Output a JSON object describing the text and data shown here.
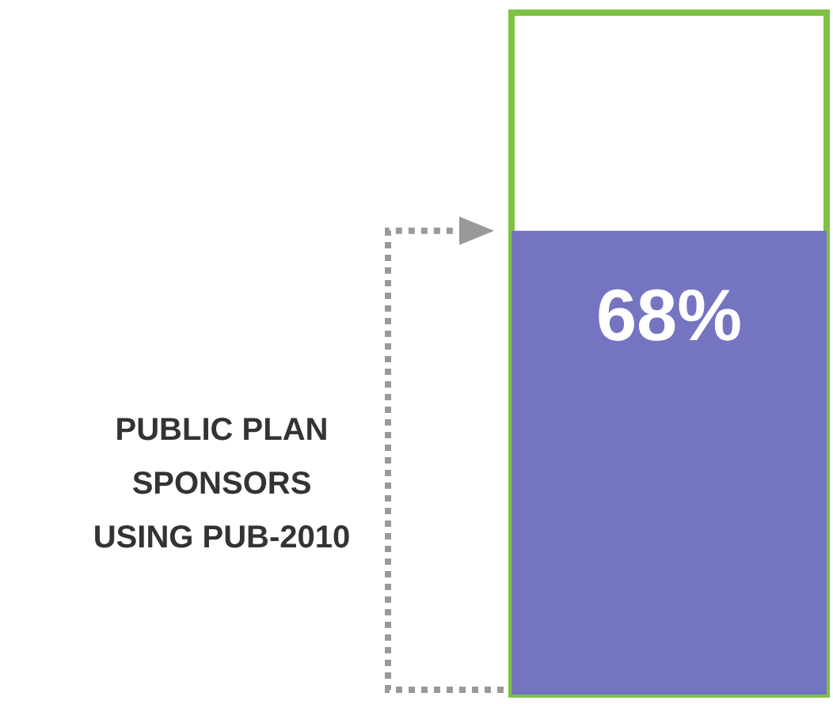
{
  "chart_data": {
    "type": "bar",
    "categories": [
      null
    ],
    "values": [
      68
    ],
    "value_labels": [
      "68%"
    ],
    "color": "#7474c1",
    "ylim": [
      0,
      100
    ],
    "tick_labels": false,
    "grid": false,
    "annotations": [
      "PUBLIC PLAN\nSPONSORS\nUSING PUB-2010"
    ]
  }
}
